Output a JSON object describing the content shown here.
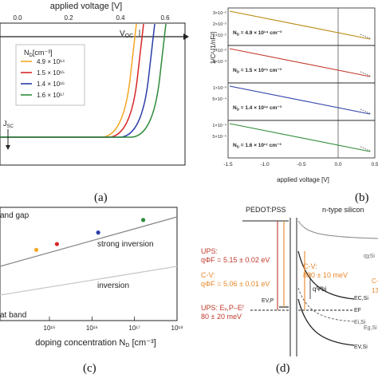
{
  "panel_a": {
    "caption": "(a)",
    "top_axis_label": "applied voltage [V]",
    "top_ticks": [
      "0.0",
      "0.2",
      "0.4",
      "0.6"
    ],
    "voc_label": "V",
    "voc_sub": "OC",
    "jsc_label": "J",
    "jsc_sub": "SC",
    "legend_title": "N",
    "legend_title_sub": "D",
    "legend_title_unit": "[cm⁻³]",
    "colors": [
      "#f5a623",
      "#d62728",
      "#2b3ea8",
      "#2e8b3a"
    ],
    "legend": [
      "4.9 × 10¹⁴",
      "1.5 × 10¹⁵",
      "1.4 × 10¹⁶",
      "1.6 × 10¹⁷"
    ]
  },
  "panel_b": {
    "caption": "(b)",
    "ylabel": "1/C² [1/nF²]",
    "xlabel": "applied voltage [V]",
    "x_ticks": [
      "-1.5",
      "-1.0",
      "-0.5",
      "0.0",
      "0.5"
    ],
    "subplots": [
      {
        "label": "N",
        "sub": "D",
        "value": " = 4.9 × 10¹⁴ cm⁻³",
        "ticks": [
          "3×10⁻²",
          "2×10⁻²",
          "1×10⁻²"
        ],
        "color": "#b8860b"
      },
      {
        "label": "N",
        "sub": "D",
        "value": " = 1.5 × 10¹⁵ cm⁻³",
        "ticks": [
          "1×10⁻²",
          "5×10⁻³",
          ""
        ],
        "color": "#c0392b"
      },
      {
        "label": "N",
        "sub": "D",
        "value": " = 1.4 × 10¹⁶ cm⁻³",
        "ticks": [
          "1×10⁻³",
          "5×10⁻⁴",
          ""
        ],
        "color": "#2b3ea8"
      },
      {
        "label": "N",
        "sub": "D",
        "value": " = 1.6 × 10¹⁷ cm⁻³",
        "ticks": [
          "1×10⁻⁴",
          "5×10⁻⁵",
          ""
        ],
        "color": "#2e8b3a"
      }
    ]
  },
  "panel_c": {
    "caption": "(c)",
    "xlabel": "doping concentration N",
    "xlabel_sub": "D",
    "xlabel_unit": " [cm⁻³]",
    "x_ticks": [
      "10¹⁵",
      "10¹⁶",
      "10¹⁷",
      "10¹⁸"
    ],
    "labels": {
      "band_gap": "and gap",
      "strong_inversion": "strong inversion",
      "inversion": "inversion",
      "flat_band": "at band"
    },
    "points": [
      {
        "x": 490000000000000.0,
        "color": "#f5a623"
      },
      {
        "x": 1500000000000000.0,
        "color": "#d62728"
      },
      {
        "x": 1.4e+16,
        "color": "#2b3ea8"
      },
      {
        "x": 1.6e+17,
        "color": "#2e8b3a"
      }
    ]
  },
  "panel_d": {
    "caption": "(d)",
    "pedot_label": "PEDOT:PSS",
    "si_label": "n-type silicon",
    "ups1_title": "UPS:",
    "ups1_value": "qΦF = 5.15 ± 0.02 eV",
    "cv1_title": "C-V:",
    "cv1_value": "qΦF = 5.06 ± 0.01 eV",
    "cv2_title": "C-V:",
    "cv2_value": "880 ± 10 meV",
    "ups2_title": "UPS: Eᵥ,P–Eᶠ",
    "ups2_value": "80 ± 20 meV",
    "psi_label": "qΨbi",
    "evp_label": "EV,P",
    "ecsi_label": "EC,Si",
    "ef_label": "EF",
    "efsi_label": "Ei,Si",
    "evsi_label": "EV,Si",
    "qx_label": "qχSi",
    "eg_label": "Eg,Si",
    "cut1": "C-",
    "cut2": "13"
  }
}
